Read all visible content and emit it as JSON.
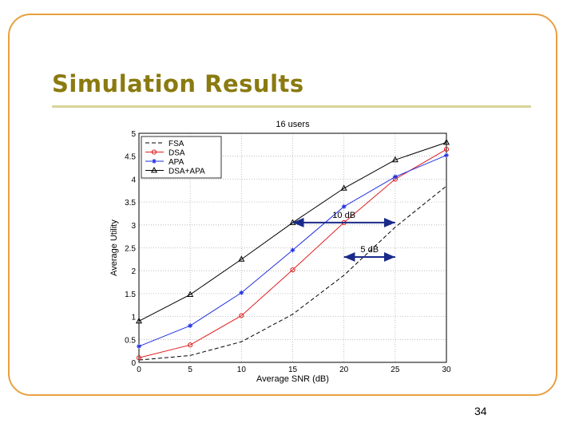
{
  "slide": {
    "title": "Simulation Results",
    "page_number": "34"
  },
  "colors": {
    "frame": "#e8a040",
    "title": "#8a7a10",
    "rule": "#d8d49a",
    "arrow": "#1a2a8a"
  },
  "chart_data": {
    "type": "line",
    "title": "16 users",
    "xlabel": "Average SNR (dB)",
    "ylabel": "Average Utility",
    "xlim": [
      0,
      30
    ],
    "ylim": [
      0,
      5
    ],
    "xticks": [
      "0",
      "5",
      "10",
      "15",
      "20",
      "25",
      "30"
    ],
    "yticks": [
      "0",
      "0.5",
      "1",
      "1.5",
      "2",
      "2.5",
      "3",
      "3.5",
      "4",
      "4.5",
      "5"
    ],
    "grid": true,
    "legend_position": "top-left",
    "x": [
      0,
      5,
      10,
      15,
      20,
      25,
      30
    ],
    "series": [
      {
        "name": "FSA",
        "values": [
          0.05,
          0.15,
          0.45,
          1.05,
          1.9,
          2.95,
          3.85
        ],
        "color": "#000000",
        "dash": "dashed",
        "marker": "none"
      },
      {
        "name": "DSA",
        "values": [
          0.1,
          0.38,
          1.02,
          2.02,
          3.05,
          4.0,
          4.65
        ],
        "color": "#e02020",
        "dash": "solid",
        "marker": "circle"
      },
      {
        "name": "APA",
        "values": [
          0.35,
          0.8,
          1.52,
          2.45,
          3.4,
          4.05,
          4.52
        ],
        "color": "#2030e0",
        "dash": "solid",
        "marker": "star"
      },
      {
        "name": "DSA+APA",
        "values": [
          0.9,
          1.48,
          2.25,
          3.05,
          3.8,
          4.42,
          4.8
        ],
        "color": "#000000",
        "dash": "solid",
        "marker": "triangle"
      }
    ],
    "annotations": [
      {
        "label": "10 dB",
        "x_from": 15,
        "x_to": 25,
        "y": 3.05
      },
      {
        "label": "5 dB",
        "x_from": 20,
        "x_to": 25,
        "y": 2.3
      }
    ]
  }
}
